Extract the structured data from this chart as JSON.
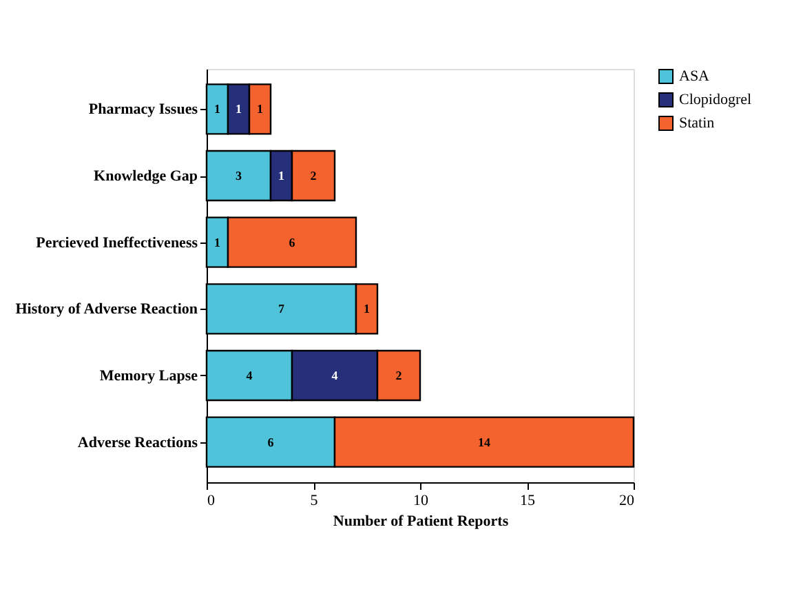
{
  "chart_data": {
    "type": "bar",
    "orientation": "horizontal",
    "stacked": true,
    "data_labels": true,
    "xlabel": "Number of Patient Reports",
    "categories": [
      "Pharmacy Issues",
      "Knowledge Gap",
      "Percieved Ineffectiveness",
      "History of Adverse Reaction",
      "Memory Lapse",
      "Adverse Reactions"
    ],
    "series": [
      {
        "name": "ASA",
        "color": "#4fc3d9",
        "values": [
          1,
          3,
          1,
          7,
          4,
          6
        ]
      },
      {
        "name": "Clopidogrel",
        "color": "#26307a",
        "values": [
          1,
          1,
          null,
          null,
          4,
          null
        ]
      },
      {
        "name": "Statin",
        "color": "#f4622e",
        "values": [
          1,
          2,
          6,
          1,
          2,
          14
        ]
      }
    ],
    "xlim": [
      0,
      20
    ],
    "xticks": [
      0,
      5,
      10,
      15,
      20
    ],
    "grid": false,
    "legend": "right"
  }
}
